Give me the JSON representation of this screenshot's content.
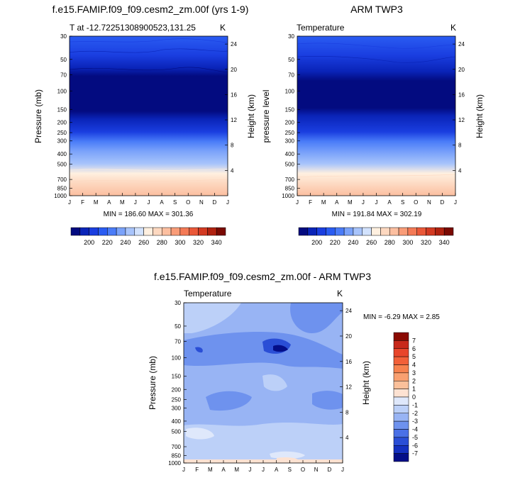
{
  "chart_data": [
    {
      "type": "heatmap",
      "title": "f.e15.FAMIP.f09_f09.cesm2_zm.00f (yrs 1-9)",
      "subtitle_left": "T at -12.72251308900523,131.25",
      "subtitle_right": "K",
      "ylabel": "Pressure (mb)",
      "ylabel_right": "Height (km)",
      "minmax_label": "MIN = 186.60 MAX = 301.36",
      "x_ticks": [
        "J",
        "F",
        "M",
        "A",
        "M",
        "J",
        "J",
        "A",
        "S",
        "O",
        "N",
        "D",
        "J"
      ],
      "y_ticks": [
        "30",
        "50",
        "70",
        "100",
        "150",
        "200",
        "250",
        "300",
        "400",
        "500",
        "700",
        "850",
        "1000"
      ],
      "height_ticks": [
        "24",
        "20",
        "16",
        "12",
        "8",
        "4"
      ],
      "colorbar_labels": [
        "200",
        "220",
        "240",
        "260",
        "280",
        "300",
        "320",
        "340"
      ],
      "colorbar_levels": [
        190,
        200,
        210,
        220,
        230,
        240,
        250,
        260,
        270,
        280,
        290,
        300,
        310,
        320,
        330,
        340,
        350
      ],
      "colorbar_colors": [
        "#030b80",
        "#0a24b8",
        "#1a3ee0",
        "#2a5cf2",
        "#4a7cf8",
        "#7aa2fa",
        "#a8c4fb",
        "#d2e2fd",
        "#fff0e0",
        "#fdd8c0",
        "#fcbfa0",
        "#f99c78",
        "#f47a56",
        "#ea5838",
        "#d33a22",
        "#b02210",
        "#7a0a02"
      ],
      "profile_levels": [
        {
          "p": 30,
          "v": 215
        },
        {
          "p": 50,
          "v": 208
        },
        {
          "p": 70,
          "v": 196
        },
        {
          "p": 100,
          "v": 191
        },
        {
          "p": 150,
          "v": 198
        },
        {
          "p": 200,
          "v": 218
        },
        {
          "p": 250,
          "v": 228
        },
        {
          "p": 300,
          "v": 240
        },
        {
          "p": 400,
          "v": 255
        },
        {
          "p": 500,
          "v": 268
        },
        {
          "p": 700,
          "v": 283
        },
        {
          "p": 850,
          "v": 292
        },
        {
          "p": 1000,
          "v": 298
        }
      ]
    },
    {
      "type": "heatmap",
      "title": "ARM TWP3",
      "subtitle_left": "Temperature",
      "subtitle_right": "K",
      "ylabel": "pressure level",
      "ylabel_right": "Height (km)",
      "minmax_label": "MIN = 191.84 MAX = 302.19",
      "x_ticks": [
        "J",
        "F",
        "M",
        "A",
        "M",
        "J",
        "J",
        "A",
        "S",
        "O",
        "N",
        "D",
        "J"
      ],
      "y_ticks": [
        "30",
        "50",
        "70",
        "100",
        "150",
        "200",
        "250",
        "300",
        "400",
        "500",
        "700",
        "850",
        "1000"
      ],
      "height_ticks": [
        "24",
        "20",
        "16",
        "12",
        "8",
        "4"
      ],
      "colorbar_labels": [
        "200",
        "220",
        "240",
        "260",
        "280",
        "300",
        "320",
        "340"
      ]
    },
    {
      "type": "heatmap",
      "title": "f.e15.FAMIP.f09_f09.cesm2_zm.00f - ARM TWP3",
      "subtitle_left": "Temperature",
      "subtitle_right": "K",
      "ylabel": "Pressure (mb)",
      "ylabel_right": "Height (km)",
      "minmax_label": "MIN =  -6.29 MAX =  2.85",
      "x_ticks": [
        "J",
        "F",
        "M",
        "A",
        "M",
        "J",
        "J",
        "A",
        "S",
        "O",
        "N",
        "D",
        "J"
      ],
      "y_ticks": [
        "30",
        "50",
        "70",
        "100",
        "150",
        "200",
        "250",
        "300",
        "400",
        "500",
        "700",
        "850",
        "1000"
      ],
      "height_ticks": [
        "24",
        "20",
        "16",
        "12",
        "8",
        "4"
      ],
      "colorbar_labels": [
        "7",
        "6",
        "5",
        "4",
        "3",
        "2",
        "1",
        "0",
        "-1",
        "-2",
        "-3",
        "-4",
        "-5",
        "-6",
        "-7"
      ],
      "colorbar_colors": [
        "#8a0a02",
        "#c8281a",
        "#e8452a",
        "#f26038",
        "#f7824e",
        "#f9a070",
        "#fbc09a",
        "#fde2d2",
        "#dfe8fb",
        "#bcd0f8",
        "#98b4f4",
        "#6e92ee",
        "#4a70e6",
        "#2a4ed6",
        "#1430c0",
        "#040e88"
      ]
    }
  ]
}
